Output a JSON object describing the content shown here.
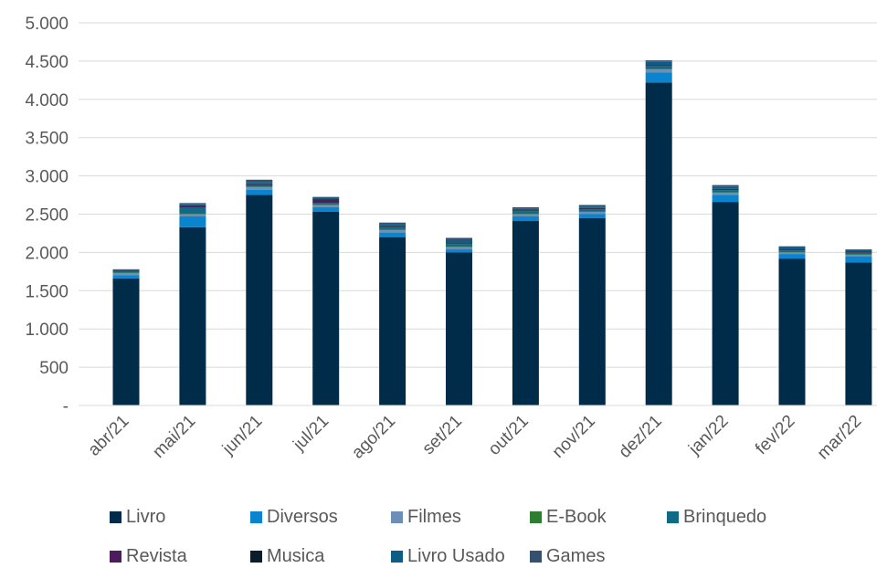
{
  "chart_data": {
    "type": "bar",
    "stacked": true,
    "categories": [
      "abr/21",
      "mai/21",
      "jun/21",
      "jul/21",
      "ago/21",
      "set/21",
      "out/21",
      "nov/21",
      "dez/21",
      "jan/22",
      "fev/22",
      "mar/22"
    ],
    "y_ticks": [
      "-",
      "500",
      "1.000",
      "1.500",
      "2.000",
      "2.500",
      "3.000",
      "3.500",
      "4.000",
      "4.500",
      "5.000"
    ],
    "ylim": [
      0,
      5000
    ],
    "grid": true,
    "legend_position": "bottom",
    "series": [
      {
        "name": "Livro",
        "color": "#002b49",
        "values": [
          1660,
          2330,
          2750,
          2530,
          2200,
          2000,
          2410,
          2450,
          4220,
          2660,
          1920,
          1870
        ]
      },
      {
        "name": "Diversos",
        "color": "#0b84d0",
        "values": [
          40,
          140,
          70,
          60,
          60,
          40,
          60,
          50,
          130,
          90,
          60,
          80
        ]
      },
      {
        "name": "Filmes",
        "color": "#6d8fb7",
        "values": [
          30,
          30,
          30,
          30,
          30,
          30,
          30,
          30,
          40,
          30,
          20,
          20
        ]
      },
      {
        "name": "E-Book",
        "color": "#2e7d32",
        "values": [
          5,
          5,
          5,
          5,
          5,
          5,
          5,
          5,
          5,
          5,
          5,
          5
        ]
      },
      {
        "name": "Brinquedo",
        "color": "#0f6a83",
        "values": [
          20,
          80,
          20,
          20,
          30,
          30,
          30,
          30,
          40,
          30,
          20,
          20
        ]
      },
      {
        "name": "Revista",
        "color": "#4b1d5e",
        "values": [
          0,
          20,
          5,
          40,
          5,
          5,
          5,
          5,
          5,
          5,
          5,
          5
        ]
      },
      {
        "name": "Musica",
        "color": "#0b1d2a",
        "values": [
          5,
          10,
          10,
          10,
          10,
          10,
          10,
          10,
          10,
          10,
          10,
          10
        ]
      },
      {
        "name": "Livro Usado",
        "color": "#0d5d87",
        "values": [
          10,
          20,
          30,
          20,
          30,
          40,
          20,
          20,
          40,
          30,
          30,
          20
        ]
      },
      {
        "name": "Games",
        "color": "#34516f",
        "values": [
          10,
          10,
          30,
          10,
          20,
          30,
          20,
          20,
          20,
          20,
          10,
          10
        ]
      }
    ]
  }
}
